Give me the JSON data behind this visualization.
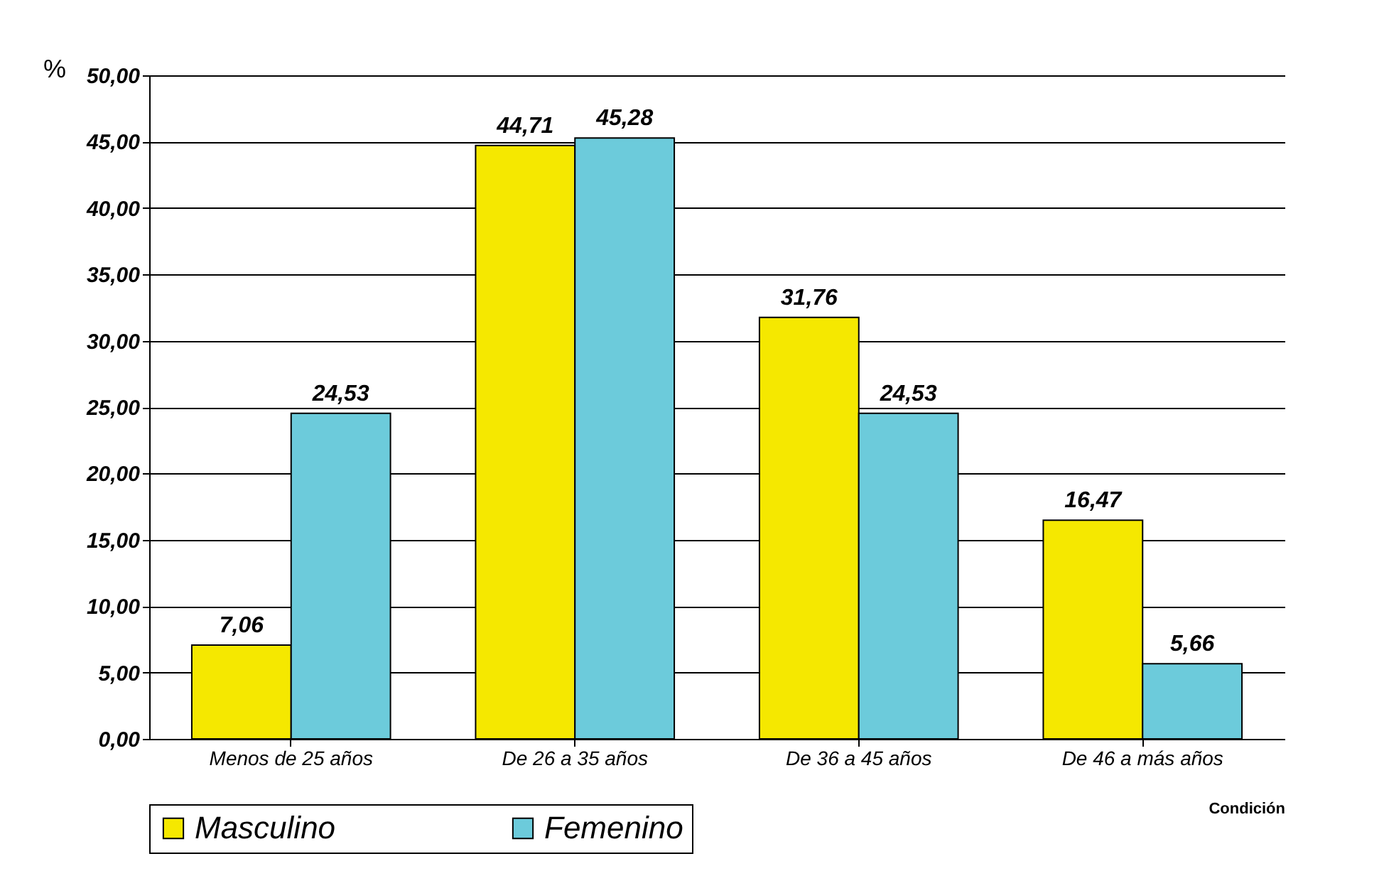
{
  "chart_data": {
    "type": "bar",
    "ylabel": "%",
    "xlabel": "Condición",
    "categories": [
      "Menos de 25 años",
      "De 26 a 35 años",
      "De 36 a 45 años",
      "De 46 a más años"
    ],
    "series": [
      {
        "name": "Masculino",
        "color": "#f5e800",
        "values": [
          7.06,
          44.71,
          31.76,
          16.47
        ],
        "value_labels": [
          "7,06",
          "44,71",
          "31,76",
          "16,47"
        ]
      },
      {
        "name": "Femenino",
        "color": "#6ccbdb",
        "values": [
          24.53,
          45.28,
          24.53,
          5.66
        ],
        "value_labels": [
          "24,53",
          "45,28",
          "24,53",
          "5,66"
        ]
      }
    ],
    "ylim": [
      0,
      50
    ],
    "yticks": [
      {
        "value": 0,
        "label": "0,00"
      },
      {
        "value": 5,
        "label": "5,00"
      },
      {
        "value": 10,
        "label": "10,00"
      },
      {
        "value": 15,
        "label": "15,00"
      },
      {
        "value": 20,
        "label": "20,00"
      },
      {
        "value": 25,
        "label": "25,00"
      },
      {
        "value": 30,
        "label": "30,00"
      },
      {
        "value": 35,
        "label": "35,00"
      },
      {
        "value": 40,
        "label": "40,00"
      },
      {
        "value": 45,
        "label": "45,00"
      },
      {
        "value": 50,
        "label": "50,00"
      }
    ],
    "grid": "y",
    "legend": "bottom"
  }
}
